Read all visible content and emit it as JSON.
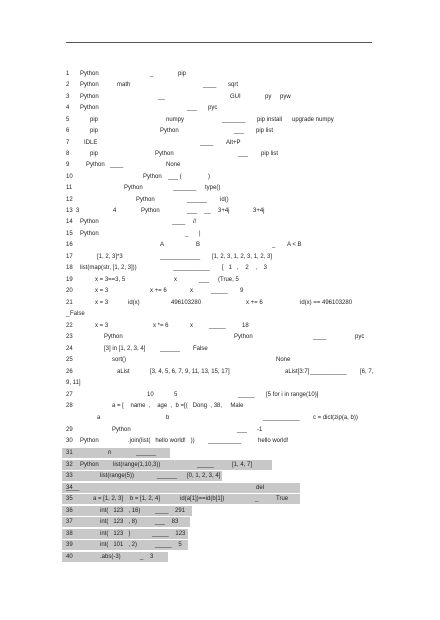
{
  "lines": [
    {
      "number": "1",
      "parts": [
        "Python",
        "_",
        "pip"
      ]
    },
    {
      "number": "2",
      "parts": [
        "Python",
        "math",
        "____",
        "sqrt"
      ]
    },
    {
      "number": "3",
      "parts": [
        "Python",
        "__",
        "GUI",
        "py",
        "pyw"
      ]
    },
    {
      "number": "4",
      "parts": [
        "Python",
        "___",
        "pyc"
      ]
    },
    {
      "number": "5",
      "parts": [
        "pip",
        "numpy",
        "_______",
        "pip install",
        "upgrade numpy"
      ]
    },
    {
      "number": "6",
      "parts": [
        "pip",
        "Python",
        "___",
        "pip list"
      ]
    },
    {
      "number": "7",
      "parts": [
        "IDLE",
        "____",
        "Alt+P"
      ]
    },
    {
      "number": "8",
      "parts": [
        "pip",
        "Python",
        "___",
        "pip list"
      ]
    },
    {
      "number": "9",
      "parts": [
        "Python",
        "____",
        "None"
      ]
    },
    {
      "number": "10",
      "parts": [
        "Python",
        "___ (",
        ")"
      ]
    },
    {
      "number": "11",
      "parts": [
        "Python",
        "_______",
        "type()"
      ]
    },
    {
      "number": "12",
      "parts": [
        "Python",
        "______",
        "id()"
      ]
    },
    {
      "number": "13",
      "parts": [
        "3",
        "4",
        "Python",
        "___",
        "__",
        "3+4j",
        "3+4j"
      ]
    },
    {
      "number": "14",
      "parts": [
        "Python",
        "____",
        "//"
      ]
    },
    {
      "number": "15",
      "parts": [
        "Python",
        "_",
        "|"
      ]
    },
    {
      "number": "16",
      "parts": [
        "A",
        "B",
        "_",
        "A < B"
      ]
    },
    {
      "number": "17",
      "parts": [
        "[1, 2, 3]*3",
        "____________",
        "[1, 2, 3, 1, 2, 3, 1, 2, 3]"
      ]
    },
    {
      "number": "18",
      "parts": [
        "list(map(str, [1, 2, 3]))",
        "___________",
        "[   1   ,    2    ,    3"
      ]
    },
    {
      "number": "19",
      "parts": [
        "x = 3==3, 5",
        "x",
        "___",
        "(True, 5"
      ]
    },
    {
      "number": "20",
      "parts": [
        "x = 3",
        "x += 6",
        "x",
        "_____",
        "9"
      ]
    },
    {
      "number": "21",
      "parts": [
        "x = 3",
        "id(x)",
        "496103280",
        "x += 6",
        "id(x) == 496103280"
      ]
    },
    {
      "number": "_",
      "parts": [
        "False"
      ]
    },
    {
      "number": "22",
      "parts": [
        "x = 3",
        "x *= 6",
        "x",
        "_____",
        "18"
      ]
    },
    {
      "number": "23",
      "parts": [
        "Python",
        "Python",
        "____",
        "pyc"
      ]
    },
    {
      "number": "24",
      "parts": [
        "[3] in [1, 2, 3, 4]",
        "______",
        "False"
      ]
    },
    {
      "number": "25",
      "parts": [
        "sort()",
        "None"
      ]
    },
    {
      "number": "26",
      "parts": [
        "aList",
        "[3, 4, 5, 6, 7, 9, 11, 13, 15, 17]",
        "aList[3:7]",
        "___________",
        "[6, 7,"
      ]
    },
    {
      "number": "",
      "parts": [
        "9, 11]"
      ]
    },
    {
      "number": "27",
      "parts": [
        "10",
        "5",
        "_____",
        "[5 for i in range(10)]"
      ]
    },
    {
      "number": "28",
      "parts": [
        "a = [    name  ,    age  ,  b =[(   Dong  , 38,     Male"
      ]
    },
    {
      "number": "",
      "parts": [
        "a",
        "b",
        "___________",
        "c = dict(zip(a, b))"
      ]
    },
    {
      "number": "29",
      "parts": [
        "Python",
        "___",
        "-1"
      ]
    },
    {
      "number": "30",
      "parts": [
        "Python",
        ".join(list(   hello world!   ))",
        "__________",
        "hello world!"
      ]
    },
    {
      "number": "31",
      "parts": [
        "n",
        "______"
      ]
    },
    {
      "number": "32",
      "parts": [
        "Python",
        "list(range(1,10,3))",
        "_____",
        "[1, 4, 7]"
      ]
    },
    {
      "number": "33",
      "parts": [
        "list(range(5))",
        "______",
        "[0, 1, 2, 3, 4]"
      ]
    },
    {
      "number": "34",
      "parts": [
        "____",
        "del"
      ]
    },
    {
      "number": "35",
      "parts": [
        "a = [1, 2, 3]    b = [1, 2, 4]",
        "id(a[1])==id(b[1])",
        "_",
        "True"
      ]
    },
    {
      "number": "36",
      "parts": [
        "int(   123   , 16)",
        "____    291"
      ]
    },
    {
      "number": "37",
      "parts": [
        "int(   123   , 8)",
        "___    83"
      ]
    },
    {
      "number": "38",
      "parts": [
        "int(   123   )",
        "_____    123"
      ]
    },
    {
      "number": "39",
      "parts": [
        "int(   101   , 2)",
        "_____    5"
      ]
    },
    {
      "number": "40",
      "parts": [
        ".abs(-3)",
        "_    3"
      ]
    }
  ]
}
